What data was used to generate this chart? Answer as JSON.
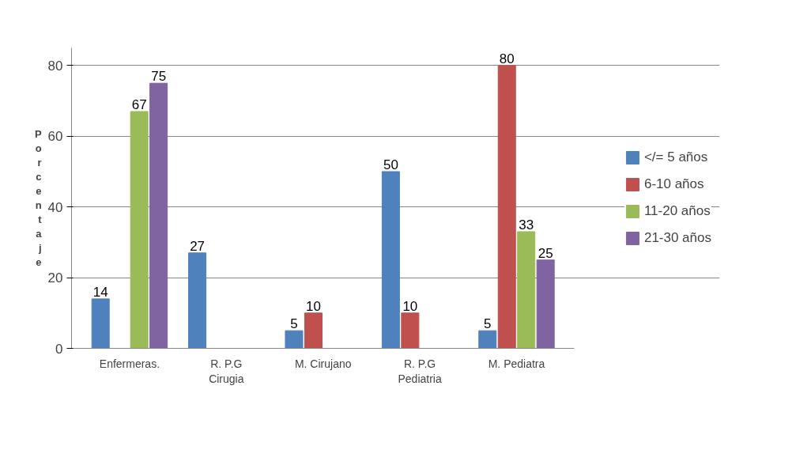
{
  "chart_data": {
    "type": "bar",
    "ylabel": "Porcentaje",
    "categories": [
      "Enfermeras.",
      "R. P.G\nCirugia",
      "M. Cirujano",
      "R. P.G\nPediatria",
      "M. Pediatra"
    ],
    "series": [
      {
        "name": "</= 5 años",
        "color": "#4f81bd",
        "values": [
          14,
          27,
          5,
          50,
          5
        ]
      },
      {
        "name": "6-10 años",
        "color": "#c0504d",
        "values": [
          null,
          null,
          10,
          10,
          80
        ]
      },
      {
        "name": "11-20 años",
        "color": "#9bbb59",
        "values": [
          67,
          null,
          null,
          null,
          33
        ]
      },
      {
        "name": "21-30 años",
        "color": "#8064a2",
        "values": [
          75,
          null,
          null,
          null,
          25
        ]
      }
    ],
    "ylim": [
      0,
      85
    ],
    "yticks": [
      0,
      20,
      40,
      60,
      80
    ],
    "grid": "y",
    "legend": "right",
    "data_labels": true
  }
}
